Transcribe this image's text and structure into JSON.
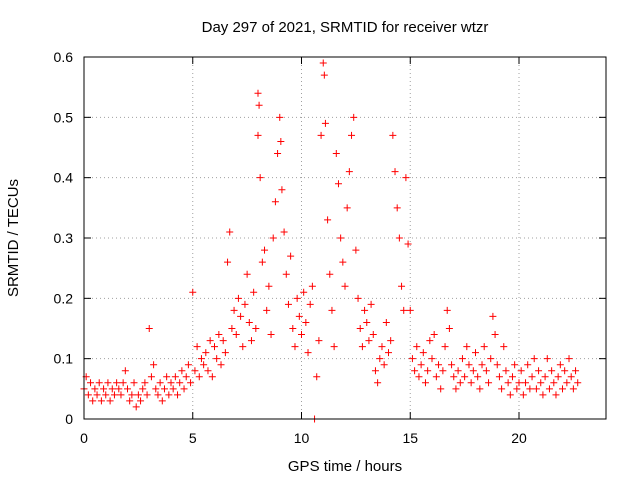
{
  "chart_data": {
    "type": "scatter",
    "title": "Day 297 of 2021, SRMTID for receiver wtzr",
    "xlabel": "GPS time / hours",
    "ylabel": "SRMTID / TECUs",
    "xlim": [
      0,
      24
    ],
    "ylim": [
      0,
      0.6
    ],
    "xticks": [
      0,
      5,
      10,
      15,
      20
    ],
    "xtick_labels": [
      "0",
      "5",
      "10",
      "15",
      "20"
    ],
    "yticks": [
      0,
      0.1,
      0.2,
      0.3,
      0.4,
      0.5,
      0.6
    ],
    "ytick_labels": [
      "0",
      "0.1",
      "0.2",
      "0.3",
      "0.4",
      "0.5",
      "0.6"
    ],
    "grid": true,
    "marker": "plus",
    "color": "#ff0000",
    "series": [
      {
        "name": "SRMTID",
        "points": [
          [
            0.0,
            0.05
          ],
          [
            0.1,
            0.07
          ],
          [
            0.2,
            0.04
          ],
          [
            0.3,
            0.06
          ],
          [
            0.4,
            0.03
          ],
          [
            0.5,
            0.05
          ],
          [
            0.6,
            0.04
          ],
          [
            0.7,
            0.06
          ],
          [
            0.8,
            0.03
          ],
          [
            0.9,
            0.05
          ],
          [
            1.0,
            0.04
          ],
          [
            1.1,
            0.06
          ],
          [
            1.2,
            0.03
          ],
          [
            1.3,
            0.05
          ],
          [
            1.4,
            0.04
          ],
          [
            1.5,
            0.06
          ],
          [
            1.6,
            0.05
          ],
          [
            1.7,
            0.04
          ],
          [
            1.8,
            0.06
          ],
          [
            1.9,
            0.08
          ],
          [
            2.0,
            0.05
          ],
          [
            2.1,
            0.03
          ],
          [
            2.2,
            0.04
          ],
          [
            2.3,
            0.06
          ],
          [
            2.4,
            0.02
          ],
          [
            2.5,
            0.04
          ],
          [
            2.6,
            0.03
          ],
          [
            2.7,
            0.05
          ],
          [
            2.8,
            0.06
          ],
          [
            2.9,
            0.04
          ],
          [
            3.0,
            0.15
          ],
          [
            3.1,
            0.07
          ],
          [
            3.2,
            0.09
          ],
          [
            3.3,
            0.05
          ],
          [
            3.4,
            0.04
          ],
          [
            3.5,
            0.06
          ],
          [
            3.6,
            0.03
          ],
          [
            3.7,
            0.05
          ],
          [
            3.8,
            0.07
          ],
          [
            3.9,
            0.04
          ],
          [
            4.0,
            0.06
          ],
          [
            4.1,
            0.05
          ],
          [
            4.2,
            0.07
          ],
          [
            4.3,
            0.04
          ],
          [
            4.4,
            0.06
          ],
          [
            4.5,
            0.08
          ],
          [
            4.6,
            0.05
          ],
          [
            4.7,
            0.07
          ],
          [
            4.8,
            0.09
          ],
          [
            4.9,
            0.06
          ],
          [
            5.0,
            0.21
          ],
          [
            5.1,
            0.08
          ],
          [
            5.2,
            0.12
          ],
          [
            5.3,
            0.07
          ],
          [
            5.4,
            0.1
          ],
          [
            5.5,
            0.09
          ],
          [
            5.6,
            0.11
          ],
          [
            5.7,
            0.08
          ],
          [
            5.8,
            0.13
          ],
          [
            5.9,
            0.07
          ],
          [
            6.0,
            0.12
          ],
          [
            6.1,
            0.1
          ],
          [
            6.2,
            0.14
          ],
          [
            6.3,
            0.09
          ],
          [
            6.4,
            0.13
          ],
          [
            6.5,
            0.11
          ],
          [
            6.6,
            0.26
          ],
          [
            6.7,
            0.31
          ],
          [
            6.8,
            0.15
          ],
          [
            6.9,
            0.18
          ],
          [
            7.0,
            0.14
          ],
          [
            7.1,
            0.2
          ],
          [
            7.2,
            0.17
          ],
          [
            7.3,
            0.12
          ],
          [
            7.4,
            0.19
          ],
          [
            7.5,
            0.24
          ],
          [
            7.6,
            0.16
          ],
          [
            7.7,
            0.13
          ],
          [
            7.8,
            0.21
          ],
          [
            7.9,
            0.15
          ],
          [
            8.0,
            0.54
          ],
          [
            8.05,
            0.52
          ],
          [
            8.0,
            0.47
          ],
          [
            8.1,
            0.4
          ],
          [
            8.2,
            0.26
          ],
          [
            8.3,
            0.28
          ],
          [
            8.4,
            0.18
          ],
          [
            8.5,
            0.22
          ],
          [
            8.6,
            0.14
          ],
          [
            8.7,
            0.3
          ],
          [
            8.8,
            0.36
          ],
          [
            8.9,
            0.44
          ],
          [
            9.0,
            0.5
          ],
          [
            9.05,
            0.46
          ],
          [
            9.1,
            0.38
          ],
          [
            9.2,
            0.31
          ],
          [
            9.3,
            0.24
          ],
          [
            9.4,
            0.19
          ],
          [
            9.5,
            0.27
          ],
          [
            9.6,
            0.15
          ],
          [
            9.7,
            0.12
          ],
          [
            9.8,
            0.2
          ],
          [
            9.9,
            0.17
          ],
          [
            10.0,
            0.14
          ],
          [
            10.1,
            0.21
          ],
          [
            10.2,
            0.16
          ],
          [
            10.3,
            0.11
          ],
          [
            10.4,
            0.19
          ],
          [
            10.5,
            0.22
          ],
          [
            10.6,
            0.0
          ],
          [
            10.7,
            0.07
          ],
          [
            10.8,
            0.13
          ],
          [
            10.9,
            0.47
          ],
          [
            11.0,
            0.59
          ],
          [
            11.05,
            0.57
          ],
          [
            11.1,
            0.49
          ],
          [
            11.2,
            0.33
          ],
          [
            11.3,
            0.24
          ],
          [
            11.4,
            0.18
          ],
          [
            11.5,
            0.12
          ],
          [
            11.6,
            0.44
          ],
          [
            11.7,
            0.39
          ],
          [
            11.8,
            0.3
          ],
          [
            11.9,
            0.26
          ],
          [
            12.0,
            0.22
          ],
          [
            12.1,
            0.35
          ],
          [
            12.2,
            0.41
          ],
          [
            12.3,
            0.47
          ],
          [
            12.4,
            0.5
          ],
          [
            12.5,
            0.28
          ],
          [
            12.6,
            0.2
          ],
          [
            12.7,
            0.15
          ],
          [
            12.8,
            0.12
          ],
          [
            12.9,
            0.18
          ],
          [
            13.0,
            0.16
          ],
          [
            13.1,
            0.13
          ],
          [
            13.2,
            0.19
          ],
          [
            13.3,
            0.14
          ],
          [
            13.4,
            0.08
          ],
          [
            13.5,
            0.06
          ],
          [
            13.6,
            0.1
          ],
          [
            13.7,
            0.12
          ],
          [
            13.8,
            0.09
          ],
          [
            13.9,
            0.16
          ],
          [
            14.0,
            0.11
          ],
          [
            14.1,
            0.13
          ],
          [
            14.2,
            0.47
          ],
          [
            14.3,
            0.41
          ],
          [
            14.4,
            0.35
          ],
          [
            14.5,
            0.3
          ],
          [
            14.6,
            0.22
          ],
          [
            14.7,
            0.18
          ],
          [
            14.8,
            0.4
          ],
          [
            14.9,
            0.29
          ],
          [
            15.0,
            0.18
          ],
          [
            15.1,
            0.1
          ],
          [
            15.2,
            0.08
          ],
          [
            15.3,
            0.12
          ],
          [
            15.4,
            0.07
          ],
          [
            15.5,
            0.09
          ],
          [
            15.6,
            0.11
          ],
          [
            15.7,
            0.06
          ],
          [
            15.8,
            0.08
          ],
          [
            15.9,
            0.13
          ],
          [
            16.0,
            0.1
          ],
          [
            16.1,
            0.14
          ],
          [
            16.2,
            0.07
          ],
          [
            16.3,
            0.09
          ],
          [
            16.4,
            0.05
          ],
          [
            16.5,
            0.08
          ],
          [
            16.6,
            0.12
          ],
          [
            16.7,
            0.18
          ],
          [
            16.8,
            0.15
          ],
          [
            16.9,
            0.09
          ],
          [
            17.0,
            0.07
          ],
          [
            17.1,
            0.05
          ],
          [
            17.2,
            0.08
          ],
          [
            17.3,
            0.06
          ],
          [
            17.4,
            0.1
          ],
          [
            17.5,
            0.07
          ],
          [
            17.6,
            0.12
          ],
          [
            17.7,
            0.09
          ],
          [
            17.8,
            0.06
          ],
          [
            17.9,
            0.08
          ],
          [
            18.0,
            0.11
          ],
          [
            18.1,
            0.07
          ],
          [
            18.2,
            0.05
          ],
          [
            18.3,
            0.09
          ],
          [
            18.4,
            0.12
          ],
          [
            18.5,
            0.08
          ],
          [
            18.6,
            0.06
          ],
          [
            18.7,
            0.1
          ],
          [
            18.8,
            0.17
          ],
          [
            18.9,
            0.14
          ],
          [
            19.0,
            0.09
          ],
          [
            19.1,
            0.07
          ],
          [
            19.2,
            0.05
          ],
          [
            19.3,
            0.12
          ],
          [
            19.4,
            0.08
          ],
          [
            19.5,
            0.06
          ],
          [
            19.6,
            0.04
          ],
          [
            19.7,
            0.07
          ],
          [
            19.8,
            0.09
          ],
          [
            19.9,
            0.05
          ],
          [
            20.0,
            0.06
          ],
          [
            20.1,
            0.08
          ],
          [
            20.2,
            0.04
          ],
          [
            20.3,
            0.06
          ],
          [
            20.4,
            0.09
          ],
          [
            20.5,
            0.05
          ],
          [
            20.6,
            0.07
          ],
          [
            20.7,
            0.1
          ],
          [
            20.8,
            0.05
          ],
          [
            20.9,
            0.08
          ],
          [
            21.0,
            0.06
          ],
          [
            21.1,
            0.04
          ],
          [
            21.2,
            0.07
          ],
          [
            21.3,
            0.1
          ],
          [
            21.4,
            0.05
          ],
          [
            21.5,
            0.08
          ],
          [
            21.6,
            0.06
          ],
          [
            21.7,
            0.04
          ],
          [
            21.8,
            0.07
          ],
          [
            21.9,
            0.09
          ],
          [
            22.0,
            0.05
          ],
          [
            22.1,
            0.08
          ],
          [
            22.2,
            0.06
          ],
          [
            22.3,
            0.1
          ],
          [
            22.4,
            0.07
          ],
          [
            22.5,
            0.05
          ],
          [
            22.6,
            0.08
          ],
          [
            22.7,
            0.06
          ]
        ]
      }
    ]
  }
}
